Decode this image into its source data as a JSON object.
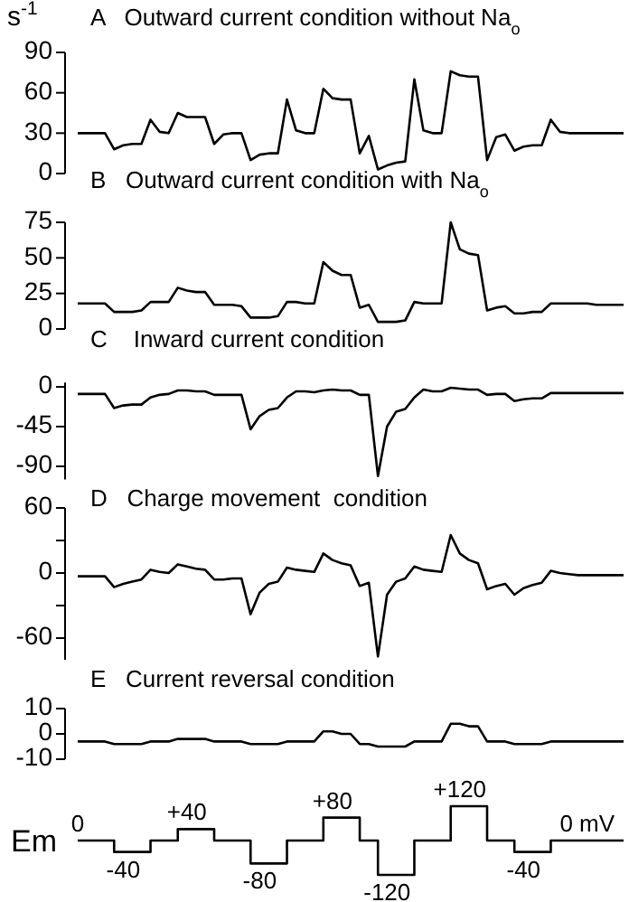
{
  "chart_data": [
    {
      "type": "line",
      "title": "A   Outward current condition without Na$_{o}$",
      "ylabel": "s$^{-1}$",
      "tick_labels": "y",
      "ylim": [
        0,
        90
      ],
      "yticks": [
        0,
        30,
        60,
        90
      ],
      "categories": [
        null,
        null,
        null,
        null,
        null,
        null,
        null,
        null,
        null,
        null,
        null,
        null,
        null,
        null,
        null,
        null,
        null,
        null,
        null,
        null,
        null,
        null,
        null,
        null,
        null,
        null,
        null,
        null,
        null,
        null,
        null,
        null,
        null,
        null,
        null,
        null,
        null,
        null,
        null,
        null,
        null,
        null,
        null,
        null,
        null,
        null,
        null,
        null,
        null,
        null,
        null,
        null,
        null,
        null,
        null,
        null,
        null,
        null,
        null,
        null,
        null
      ],
      "series": [
        {
          "color": "#000000",
          "values": [
            30,
            30,
            30,
            30,
            18,
            21,
            22,
            22,
            40,
            31,
            30,
            45,
            42,
            42,
            42,
            22,
            29,
            30,
            30,
            10,
            14,
            15,
            15,
            55,
            32,
            30,
            30,
            63,
            56,
            55,
            55,
            15,
            28,
            3,
            6,
            8,
            9,
            70,
            32,
            30,
            30,
            76,
            73,
            72,
            72,
            10,
            27,
            29,
            17,
            20,
            21,
            21,
            40,
            31,
            30,
            30,
            30,
            30,
            30,
            30,
            30
          ]
        }
      ]
    },
    {
      "type": "line",
      "title": "B   Outward current condition with Na$_{o}$",
      "tick_labels": "y",
      "ylim": [
        0,
        75
      ],
      "yticks": [
        0,
        25,
        50,
        75
      ],
      "categories": [
        null,
        null,
        null,
        null,
        null,
        null,
        null,
        null,
        null,
        null,
        null,
        null,
        null,
        null,
        null,
        null,
        null,
        null,
        null,
        null,
        null,
        null,
        null,
        null,
        null,
        null,
        null,
        null,
        null,
        null,
        null,
        null,
        null,
        null,
        null,
        null,
        null,
        null,
        null,
        null,
        null,
        null,
        null,
        null,
        null,
        null,
        null,
        null,
        null,
        null,
        null,
        null,
        null,
        null,
        null,
        null,
        null,
        null,
        null,
        null,
        null
      ],
      "series": [
        {
          "color": "#000000",
          "values": [
            18,
            18,
            18,
            18,
            12,
            12,
            12,
            13,
            19,
            19,
            19,
            29,
            27,
            26,
            26,
            17,
            17,
            17,
            16,
            8,
            8,
            8,
            9,
            19,
            19,
            18,
            18,
            47,
            41,
            38,
            38,
            15,
            17,
            5,
            5,
            5,
            6,
            19,
            18,
            18,
            18,
            75,
            56,
            53,
            52,
            13,
            15,
            16,
            11,
            11,
            12,
            12,
            18,
            18,
            18,
            18,
            18,
            17,
            17,
            17,
            17
          ]
        }
      ]
    },
    {
      "type": "line",
      "title": "C    Inward current condition",
      "tick_labels": "y",
      "ylim": [
        -105,
        5
      ],
      "yticks": [
        0,
        -45,
        -90
      ],
      "categories": [
        null,
        null,
        null,
        null,
        null,
        null,
        null,
        null,
        null,
        null,
        null,
        null,
        null,
        null,
        null,
        null,
        null,
        null,
        null,
        null,
        null,
        null,
        null,
        null,
        null,
        null,
        null,
        null,
        null,
        null,
        null,
        null,
        null,
        null,
        null,
        null,
        null,
        null,
        null,
        null,
        null,
        null,
        null,
        null,
        null,
        null,
        null,
        null,
        null,
        null,
        null,
        null,
        null,
        null,
        null,
        null,
        null,
        null,
        null,
        null,
        null
      ],
      "series": [
        {
          "color": "#000000",
          "values": [
            -8,
            -8,
            -8,
            -8,
            -24,
            -21,
            -20,
            -20,
            -12,
            -9,
            -8,
            -4,
            -4,
            -5,
            -5,
            -9,
            -9,
            -9,
            -9,
            -48,
            -33,
            -26,
            -24,
            -12,
            -5,
            -5,
            -6,
            -4,
            -3,
            -4,
            -4,
            -9,
            -9,
            -101,
            -45,
            -28,
            -25,
            -12,
            -3,
            -5,
            -5,
            -1,
            -2,
            -3,
            -3,
            -9,
            -8,
            -8,
            -16,
            -14,
            -13,
            -13,
            -7,
            -7,
            -7,
            -7,
            -7,
            -7,
            -7,
            -7,
            -7
          ]
        }
      ]
    },
    {
      "type": "line",
      "title": "D   Charge movement  condition",
      "tick_labels": "y",
      "ylim": [
        -80,
        60
      ],
      "yticks": [
        60,
        {
          "value": 30,
          "label": null
        },
        0,
        {
          "value": -30,
          "label": null
        },
        -60
      ],
      "categories": [
        null,
        null,
        null,
        null,
        null,
        null,
        null,
        null,
        null,
        null,
        null,
        null,
        null,
        null,
        null,
        null,
        null,
        null,
        null,
        null,
        null,
        null,
        null,
        null,
        null,
        null,
        null,
        null,
        null,
        null,
        null,
        null,
        null,
        null,
        null,
        null,
        null,
        null,
        null,
        null,
        null,
        null,
        null,
        null,
        null,
        null,
        null,
        null,
        null,
        null,
        null,
        null,
        null,
        null,
        null,
        null,
        null,
        null,
        null,
        null,
        null
      ],
      "series": [
        {
          "color": "#000000",
          "values": [
            -3,
            -3,
            -3,
            -3,
            -13,
            -10,
            -8,
            -6,
            3,
            1,
            0,
            8,
            6,
            4,
            3,
            -6,
            -6,
            -5,
            -5,
            -38,
            -18,
            -10,
            -8,
            5,
            3,
            2,
            1,
            18,
            12,
            9,
            7,
            -12,
            -9,
            -77,
            -20,
            -8,
            -5,
            6,
            3,
            2,
            1,
            35,
            18,
            12,
            9,
            -15,
            -12,
            -10,
            -20,
            -14,
            -11,
            -9,
            2,
            0,
            -1,
            -2,
            -2,
            -2,
            -2,
            -2,
            -2
          ]
        }
      ]
    },
    {
      "type": "line",
      "title": "E   Current reversal condition",
      "tick_labels": "y",
      "ylim": [
        -10,
        10
      ],
      "yticks": [
        -10,
        0,
        10
      ],
      "categories": [
        null,
        null,
        null,
        null,
        null,
        null,
        null,
        null,
        null,
        null,
        null,
        null,
        null,
        null,
        null,
        null,
        null,
        null,
        null,
        null,
        null,
        null,
        null,
        null,
        null,
        null,
        null,
        null,
        null,
        null,
        null,
        null,
        null,
        null,
        null,
        null,
        null,
        null,
        null,
        null,
        null,
        null,
        null,
        null,
        null,
        null,
        null,
        null,
        null,
        null,
        null,
        null,
        null,
        null,
        null,
        null,
        null,
        null,
        null,
        null,
        null
      ],
      "series": [
        {
          "color": "#000000",
          "values": [
            -3,
            -3,
            -3,
            -3,
            -4,
            -4,
            -4,
            -4,
            -3,
            -3,
            -3,
            -2,
            -2,
            -2,
            -2,
            -3,
            -3,
            -3,
            -3,
            -4,
            -4,
            -4,
            -4,
            -3,
            -3,
            -3,
            -3,
            1,
            1,
            0,
            0,
            -4,
            -4,
            -5,
            -5,
            -5,
            -5,
            -3,
            -3,
            -3,
            -3,
            4,
            4,
            3,
            3,
            -3,
            -3,
            -3,
            -4,
            -4,
            -4,
            -4,
            -3,
            -3,
            -3,
            -3,
            -3,
            -3,
            -3,
            -3,
            -3
          ]
        }
      ]
    },
    {
      "type": "step",
      "ylabel": "Em",
      "tick_labels": false,
      "categories": [
        null,
        null,
        null,
        null,
        null,
        null,
        null,
        null,
        null,
        null,
        null,
        null,
        null,
        null,
        null,
        null,
        null,
        null,
        null,
        null,
        null,
        null,
        null,
        null,
        null,
        null,
        null,
        null,
        null,
        null,
        null,
        null,
        null,
        null,
        null,
        null,
        null,
        null,
        null,
        null,
        null,
        null,
        null,
        null,
        null,
        null,
        null,
        null,
        null,
        null,
        null,
        null,
        null,
        null,
        null,
        null,
        null,
        null,
        null,
        null,
        null
      ],
      "series": [
        {
          "color": "#000000",
          "values": [
            0,
            0,
            0,
            0,
            -40,
            -40,
            -40,
            -40,
            0,
            0,
            0,
            40,
            40,
            40,
            40,
            0,
            0,
            0,
            0,
            -80,
            -80,
            -80,
            -80,
            0,
            0,
            0,
            0,
            80,
            80,
            80,
            80,
            0,
            0,
            -120,
            -120,
            -120,
            -120,
            0,
            0,
            0,
            0,
            120,
            120,
            120,
            120,
            0,
            0,
            0,
            -40,
            -40,
            -40,
            -40,
            0,
            0,
            0,
            0,
            0,
            0,
            0,
            0,
            0
          ],
          "value_labels": [
            "0",
            null,
            null,
            null,
            null,
            "-40",
            null,
            null,
            null,
            null,
            null,
            null,
            "+40",
            null,
            null,
            null,
            null,
            null,
            null,
            null,
            "-80",
            null,
            null,
            null,
            null,
            null,
            null,
            null,
            "+80",
            null,
            null,
            null,
            null,
            null,
            "-120",
            null,
            null,
            null,
            null,
            null,
            null,
            null,
            "+120",
            null,
            null,
            null,
            null,
            null,
            null,
            "-40",
            null,
            null,
            null,
            null,
            null,
            null,
            "0 mV",
            null,
            null,
            null,
            null
          ]
        }
      ]
    }
  ]
}
